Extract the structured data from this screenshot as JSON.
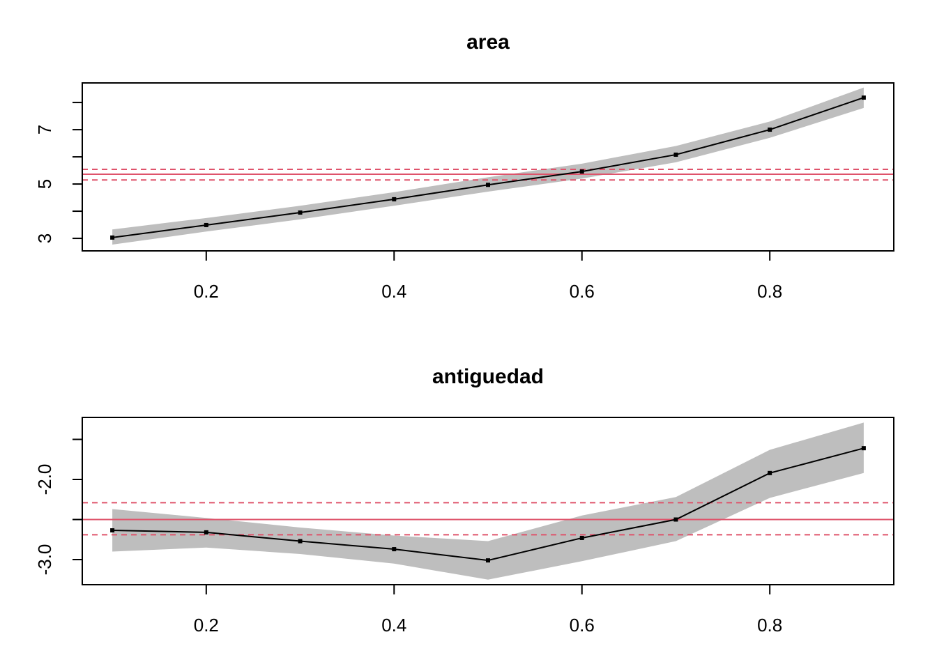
{
  "chart_data": [
    {
      "type": "line",
      "title": "area",
      "x": [
        0.1,
        0.2,
        0.3,
        0.4,
        0.5,
        0.6,
        0.7,
        0.8,
        0.9
      ],
      "values": [
        3.03,
        3.49,
        3.95,
        4.44,
        4.97,
        5.46,
        6.08,
        7.0,
        8.18
      ],
      "band_upper": [
        3.33,
        3.75,
        4.2,
        4.7,
        5.25,
        5.75,
        6.4,
        7.3,
        8.55
      ],
      "band_lower": [
        2.77,
        3.25,
        3.7,
        4.2,
        4.72,
        5.2,
        5.8,
        6.7,
        7.8
      ],
      "color": "#000000",
      "band_color": "#bebebe",
      "ref_lines": [
        {
          "value": 5.36,
          "style": "solid"
        },
        {
          "value": 5.54,
          "style": "dashed"
        },
        {
          "value": 5.15,
          "style": "dashed"
        }
      ],
      "ref_color": "#df536b",
      "xlim": [
        0.068,
        0.932
      ],
      "xticks": [
        0.2,
        0.4,
        0.6,
        0.8
      ],
      "ylim": [
        2.54,
        8.72
      ],
      "yticks": [
        3,
        5,
        7
      ],
      "yminor_ticks": [
        4,
        6,
        8
      ]
    },
    {
      "type": "line",
      "title": "antiguedad",
      "x": [
        0.1,
        0.2,
        0.3,
        0.4,
        0.5,
        0.6,
        0.7,
        0.8,
        0.9
      ],
      "values": [
        -2.635,
        -2.66,
        -2.77,
        -2.87,
        -3.01,
        -2.73,
        -2.5,
        -1.92,
        -1.61
      ],
      "band_upper": [
        -2.37,
        -2.48,
        -2.6,
        -2.7,
        -2.77,
        -2.45,
        -2.22,
        -1.63,
        -1.29
      ],
      "band_lower": [
        -2.9,
        -2.85,
        -2.93,
        -3.05,
        -3.25,
        -3.02,
        -2.77,
        -2.23,
        -1.92
      ],
      "color": "#000000",
      "band_color": "#bebebe",
      "ref_lines": [
        {
          "value": -2.5,
          "style": "solid"
        },
        {
          "value": -2.29,
          "style": "dashed"
        },
        {
          "value": -2.69,
          "style": "dashed"
        }
      ],
      "ref_color": "#df536b",
      "xlim": [
        0.068,
        0.932
      ],
      "xticks": [
        0.2,
        0.4,
        0.6,
        0.8
      ],
      "ylim": [
        -3.313,
        -1.226
      ],
      "yticks": [
        {
          "value": -2,
          "label": "-2.0"
        },
        {
          "value": -3,
          "label": "-3.0"
        }
      ],
      "yminor_ticks": [
        -1.5,
        -2.5
      ]
    }
  ]
}
